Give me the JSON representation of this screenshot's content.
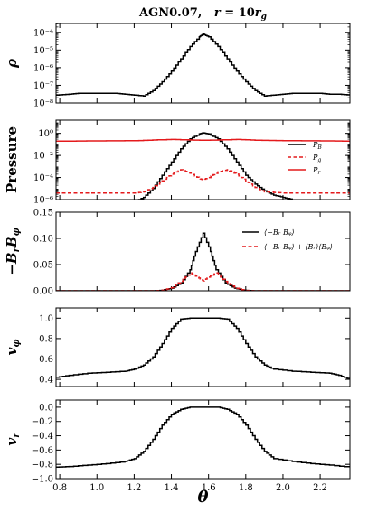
{
  "figure": {
    "title": "AGN0.07,   r = 10r_g",
    "xlabel": "θ"
  },
  "colors": {
    "black": "#000000",
    "red": "#e41a1c"
  },
  "chart_data": [
    {
      "type": "line",
      "id": "rho",
      "ylabel": "ρ",
      "yscale": "log",
      "xlim": [
        0.78,
        2.36
      ],
      "ylim_exp": [
        -8,
        -3.5
      ],
      "yticks": [
        "10⁻⁸",
        "10⁻⁷",
        "10⁻⁶",
        "10⁻⁵",
        "10⁻⁴"
      ],
      "series": [
        {
          "color": "black",
          "style": "solid",
          "x": [
            0.78,
            0.85,
            0.9,
            1.0,
            1.1,
            1.15,
            1.2,
            1.25,
            1.3,
            1.35,
            1.4,
            1.45,
            1.5,
            1.55,
            1.57,
            1.6,
            1.65,
            1.7,
            1.75,
            1.8,
            1.85,
            1.9,
            1.95,
            2.0,
            2.05,
            2.1,
            2.2,
            2.25,
            2.3,
            2.36
          ],
          "log_y": [
            -7.55,
            -7.5,
            -7.45,
            -7.45,
            -7.45,
            -7.5,
            -7.55,
            -7.6,
            -7.3,
            -6.8,
            -6.2,
            -5.5,
            -4.8,
            -4.25,
            -4.1,
            -4.25,
            -4.8,
            -5.5,
            -6.2,
            -6.8,
            -7.3,
            -7.6,
            -7.55,
            -7.5,
            -7.45,
            -7.45,
            -7.45,
            -7.5,
            -7.5,
            -7.55
          ]
        }
      ]
    },
    {
      "type": "line",
      "id": "pressure",
      "ylabel": "Pressure",
      "yscale": "log",
      "xlim": [
        0.78,
        2.36
      ],
      "ylim_exp": [
        -6,
        1.2
      ],
      "yticks": [
        "10⁻⁶",
        "10⁻⁴",
        "10⁻²",
        "10⁰"
      ],
      "legend": [
        "P_B",
        "P_g",
        "P_r"
      ],
      "series": [
        {
          "name": "P_B",
          "color": "black",
          "style": "solid",
          "x": [
            1.2,
            1.25,
            1.3,
            1.35,
            1.4,
            1.45,
            1.5,
            1.55,
            1.57,
            1.6,
            1.65,
            1.7,
            1.75,
            1.8,
            1.85,
            1.9,
            1.95,
            2.0,
            2.05
          ],
          "log_y": [
            -6.2,
            -5.8,
            -5.0,
            -3.8,
            -2.6,
            -1.4,
            -0.5,
            -0.05,
            0.05,
            -0.05,
            -0.5,
            -1.4,
            -2.6,
            -3.8,
            -4.6,
            -5.2,
            -5.6,
            -5.8,
            -6.0
          ]
        },
        {
          "name": "P_g",
          "color": "red",
          "style": "dashed",
          "x": [
            0.78,
            0.9,
            1.0,
            1.1,
            1.2,
            1.25,
            1.3,
            1.35,
            1.4,
            1.45,
            1.5,
            1.55,
            1.57,
            1.6,
            1.65,
            1.7,
            1.75,
            1.8,
            1.85,
            1.9,
            2.0,
            2.1,
            2.2,
            2.36
          ],
          "log_y": [
            -5.4,
            -5.4,
            -5.4,
            -5.4,
            -5.4,
            -5.3,
            -4.9,
            -4.3,
            -3.7,
            -3.3,
            -3.6,
            -4.1,
            -4.2,
            -4.0,
            -3.5,
            -3.3,
            -3.7,
            -4.3,
            -4.9,
            -5.3,
            -5.4,
            -5.4,
            -5.4,
            -5.4
          ]
        },
        {
          "name": "P_r",
          "color": "red",
          "style": "solid",
          "x": [
            0.78,
            1.0,
            1.2,
            1.3,
            1.4,
            1.5,
            1.57,
            1.65,
            1.75,
            1.85,
            2.0,
            2.2,
            2.36
          ],
          "log_y": [
            -0.7,
            -0.68,
            -0.66,
            -0.6,
            -0.55,
            -0.6,
            -0.62,
            -0.6,
            -0.55,
            -0.62,
            -0.66,
            -0.68,
            -0.7
          ]
        }
      ]
    },
    {
      "type": "line",
      "id": "stress",
      "ylabel": "−B_r B_φ",
      "yscale": "linear",
      "xlim": [
        0.78,
        2.36
      ],
      "ylim": [
        0,
        0.15
      ],
      "yticks": [
        "0.00",
        "0.05",
        "0.10",
        "0.15"
      ],
      "legend": [
        "⟨−B_r B_φ⟩",
        "⟨−B_r B_φ⟩ + ⟨B_r⟩⟨B_φ⟩"
      ],
      "series": [
        {
          "name": "⟨−B_r B_φ⟩",
          "color": "black",
          "style": "solid",
          "x": [
            0.78,
            1.3,
            1.35,
            1.4,
            1.45,
            1.5,
            1.53,
            1.57,
            1.61,
            1.64,
            1.69,
            1.74,
            1.79,
            1.84,
            2.36
          ],
          "y": [
            0,
            0,
            0.001,
            0.005,
            0.015,
            0.04,
            0.075,
            0.11,
            0.075,
            0.04,
            0.015,
            0.005,
            0.001,
            0,
            0
          ]
        },
        {
          "name": "⟨−B_r B_φ⟩ + ⟨B_r⟩⟨B_φ⟩",
          "color": "red",
          "style": "dashed",
          "x": [
            0.78,
            1.3,
            1.35,
            1.4,
            1.45,
            1.5,
            1.54,
            1.57,
            1.6,
            1.64,
            1.69,
            1.74,
            1.79,
            1.84,
            2.36
          ],
          "y": [
            0,
            0,
            0.001,
            0.006,
            0.018,
            0.034,
            0.026,
            0.019,
            0.026,
            0.034,
            0.018,
            0.006,
            0.001,
            0,
            0
          ]
        }
      ]
    },
    {
      "type": "line",
      "id": "vphi",
      "ylabel": "v_φ",
      "yscale": "linear",
      "xlim": [
        0.78,
        2.36
      ],
      "ylim": [
        0.33,
        1.1
      ],
      "yticks": [
        "0.4",
        "0.6",
        "0.8",
        "1.0"
      ],
      "series": [
        {
          "color": "black",
          "style": "solid",
          "x": [
            0.78,
            0.85,
            0.95,
            1.05,
            1.15,
            1.2,
            1.25,
            1.3,
            1.35,
            1.4,
            1.45,
            1.5,
            1.57,
            1.65,
            1.7,
            1.75,
            1.8,
            1.85,
            1.9,
            1.95,
            2.05,
            2.15,
            2.25,
            2.3,
            2.36
          ],
          "y": [
            0.42,
            0.44,
            0.46,
            0.47,
            0.48,
            0.5,
            0.54,
            0.62,
            0.75,
            0.9,
            0.99,
            1.0,
            1.0,
            1.0,
            0.99,
            0.9,
            0.75,
            0.62,
            0.54,
            0.5,
            0.48,
            0.47,
            0.46,
            0.44,
            0.4
          ]
        }
      ]
    },
    {
      "type": "line",
      "id": "vr",
      "ylabel": "v_r",
      "yscale": "linear",
      "xlim": [
        0.78,
        2.36
      ],
      "ylim": [
        -1.0,
        0.1
      ],
      "yticks": [
        "−1.0",
        "−0.8",
        "−0.6",
        "−0.4",
        "−0.2",
        "0.0"
      ],
      "xticks": [
        "0.8",
        "1.0",
        "1.2",
        "1.4",
        "1.6",
        "1.8",
        "2.0",
        "2.2"
      ],
      "series": [
        {
          "color": "black",
          "style": "solid",
          "x": [
            0.78,
            0.85,
            0.95,
            1.05,
            1.15,
            1.2,
            1.25,
            1.3,
            1.35,
            1.4,
            1.45,
            1.5,
            1.57,
            1.65,
            1.7,
            1.75,
            1.8,
            1.85,
            1.9,
            1.95,
            2.05,
            2.15,
            2.25,
            2.36
          ],
          "y": [
            -0.84,
            -0.83,
            -0.81,
            -0.79,
            -0.76,
            -0.72,
            -0.62,
            -0.45,
            -0.25,
            -0.1,
            -0.03,
            0.0,
            0.0,
            0.0,
            -0.03,
            -0.1,
            -0.25,
            -0.45,
            -0.62,
            -0.72,
            -0.76,
            -0.79,
            -0.81,
            -0.84
          ]
        }
      ]
    }
  ]
}
